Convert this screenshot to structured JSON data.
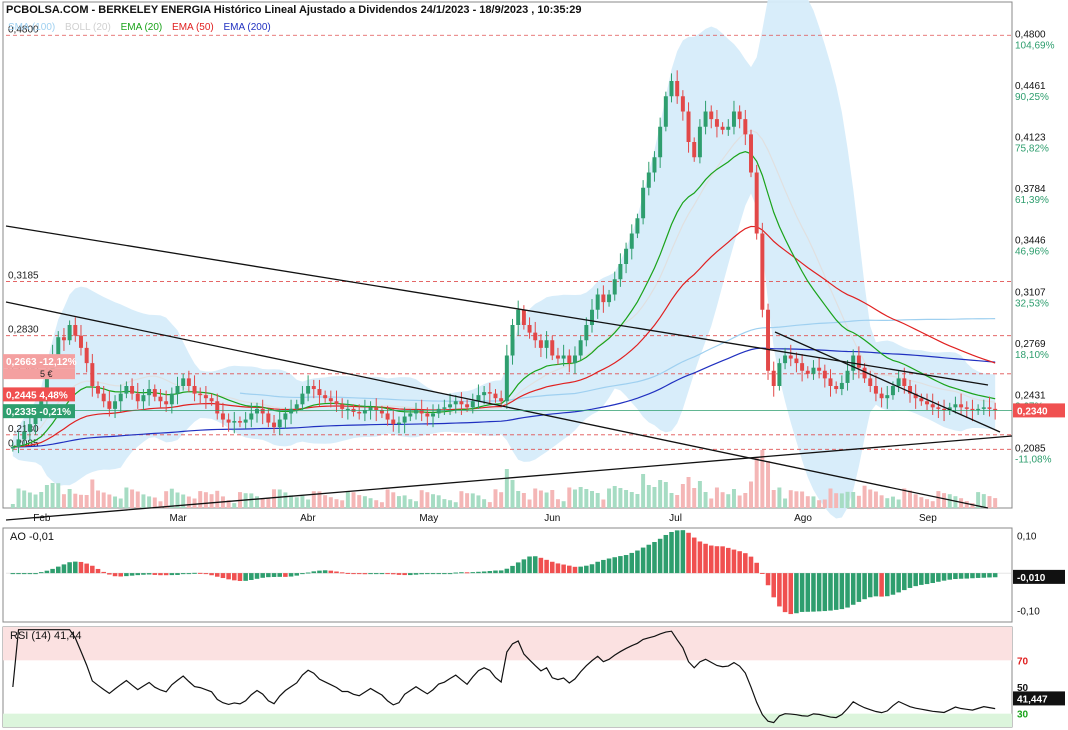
{
  "header": {
    "title": "PCBOLSA.COM - BERKELEY ENERGIA Histórico Lineal Ajustado a Dividendos 24/1/2023 - 18/9/2023 , 10:35:29"
  },
  "legend": [
    {
      "label": "SMA (100)",
      "color": "#9fd0f0"
    },
    {
      "label": "BOLL (20)",
      "color": "#d0d0d0"
    },
    {
      "label": "EMA (20)",
      "color": "#1aa31a"
    },
    {
      "label": "EMA (50)",
      "color": "#e02020"
    },
    {
      "label": "EMA (200)",
      "color": "#2030c0"
    }
  ],
  "chart_data": [
    {
      "type": "candlestick",
      "title": "PCBOLSA.COM - BERKELEY ENERGIA Histórico Lineal Ajustado a Dividendos 24/1/2023 - 18/9/2023 , 10:35:29",
      "ylim": [
        0.17,
        0.49
      ],
      "x_ticks": [
        "Feb",
        "Mar",
        "Abr",
        "May",
        "Jun",
        "Jul",
        "Ago",
        "Sep"
      ],
      "y_ticks": [
        {
          "value": 0.48,
          "label": "0,4800",
          "pct": "104,69%"
        },
        {
          "value": 0.4461,
          "label": "0,4461",
          "pct": "90,25%"
        },
        {
          "value": 0.4123,
          "label": "0,4123",
          "pct": "75,82%"
        },
        {
          "value": 0.3784,
          "label": "0,3784",
          "pct": "61,39%"
        },
        {
          "value": 0.3446,
          "label": "0,3446",
          "pct": "46,96%"
        },
        {
          "value": 0.3107,
          "label": "0,3107",
          "pct": "32,53%"
        },
        {
          "value": 0.2769,
          "label": "0,2769",
          "pct": "18,10%"
        },
        {
          "value": 0.2431,
          "label": "0,2431",
          "pct": "3,67%"
        },
        {
          "value": 0.2085,
          "label": "0,2085",
          "pct": "-11,08%"
        }
      ],
      "level_lines": [
        {
          "value": 0.48,
          "label": "0,4800"
        },
        {
          "value": 0.3185,
          "label": "0,3185"
        },
        {
          "value": 0.283,
          "label": "0,2830"
        },
        {
          "value": 0.258,
          "label": "0,2580"
        },
        {
          "value": 0.218,
          "label": "0,2180"
        },
        {
          "value": 0.2085,
          "label": "0,2085"
        }
      ],
      "price_tags": [
        {
          "value": 0.2663,
          "label": "0,2663",
          "change": "-12,12%",
          "sub": "5 €",
          "color": "#f4a0a0"
        },
        {
          "value": 0.2445,
          "label": "0,2445",
          "change": "4,48%",
          "color": "#f05050"
        },
        {
          "value": 0.2335,
          "label": "0,2335",
          "change": "-0,21%",
          "color": "#2e9e6e"
        }
      ],
      "last_price": {
        "value": 0.234,
        "label": "0,2340"
      },
      "close": [
        0.21,
        0.215,
        0.22,
        0.225,
        0.23,
        0.24,
        0.26,
        0.27,
        0.282,
        0.28,
        0.29,
        0.283,
        0.275,
        0.265,
        0.25,
        0.245,
        0.24,
        0.235,
        0.24,
        0.245,
        0.25,
        0.245,
        0.24,
        0.244,
        0.248,
        0.243,
        0.24,
        0.238,
        0.245,
        0.25,
        0.255,
        0.25,
        0.245,
        0.244,
        0.242,
        0.24,
        0.232,
        0.228,
        0.226,
        0.227,
        0.226,
        0.228,
        0.232,
        0.235,
        0.232,
        0.226,
        0.223,
        0.228,
        0.232,
        0.235,
        0.238,
        0.245,
        0.25,
        0.248,
        0.244,
        0.242,
        0.24,
        0.238,
        0.235,
        0.235,
        0.233,
        0.232,
        0.234,
        0.236,
        0.234,
        0.232,
        0.228,
        0.225,
        0.226,
        0.23,
        0.232,
        0.234,
        0.232,
        0.23,
        0.232,
        0.235,
        0.236,
        0.238,
        0.24,
        0.238,
        0.236,
        0.24,
        0.244,
        0.246,
        0.245,
        0.242,
        0.24,
        0.27,
        0.29,
        0.3,
        0.29,
        0.285,
        0.28,
        0.275,
        0.28,
        0.27,
        0.268,
        0.27,
        0.265,
        0.27,
        0.28,
        0.29,
        0.3,
        0.31,
        0.305,
        0.31,
        0.32,
        0.33,
        0.34,
        0.35,
        0.36,
        0.38,
        0.39,
        0.4,
        0.42,
        0.44,
        0.45,
        0.44,
        0.43,
        0.41,
        0.4,
        0.42,
        0.43,
        0.425,
        0.42,
        0.418,
        0.42,
        0.43,
        0.425,
        0.415,
        0.39,
        0.35,
        0.3,
        0.26,
        0.25,
        0.265,
        0.27,
        0.268,
        0.265,
        0.26,
        0.258,
        0.262,
        0.26,
        0.255,
        0.25,
        0.248,
        0.252,
        0.26,
        0.27,
        0.262,
        0.255,
        0.25,
        0.245,
        0.242,
        0.244,
        0.25,
        0.255,
        0.25,
        0.245,
        0.242,
        0.24,
        0.238,
        0.236,
        0.235,
        0.234,
        0.236,
        0.238,
        0.236,
        0.235,
        0.234,
        0.235,
        0.236,
        0.235,
        0.234
      ],
      "indicators": [
        {
          "name": "EMA (20)",
          "color": "#1aa31a"
        },
        {
          "name": "EMA (50)",
          "color": "#e02020"
        },
        {
          "name": "EMA (200)",
          "color": "#2030c0"
        },
        {
          "name": "SMA (100)",
          "color": "#9fd0f0"
        },
        {
          "name": "BOLL (20)",
          "color": "#d6ecfa"
        }
      ]
    },
    {
      "type": "bar",
      "title": "AO",
      "header": "AO  -0,01",
      "ylim": [
        -0.13,
        0.12
      ],
      "y_ticks": [
        {
          "value": 0.1,
          "label": "0,10"
        },
        {
          "value": -0.1,
          "label": "-0,10"
        }
      ],
      "last_value": {
        "value": -0.01,
        "label": "-0,010"
      },
      "up_color": "#2e9e6e",
      "down_color": "#f05050"
    },
    {
      "type": "line",
      "title": "RSI (14)",
      "header": "RSI (14)   41,44",
      "ylim": [
        20,
        95
      ],
      "y_ticks": [
        {
          "value": 70,
          "label": "70"
        },
        {
          "value": 50,
          "label": "50"
        },
        {
          "value": 30,
          "label": "30"
        }
      ],
      "last_value": {
        "value": 41.447,
        "label": "41,447"
      }
    }
  ]
}
